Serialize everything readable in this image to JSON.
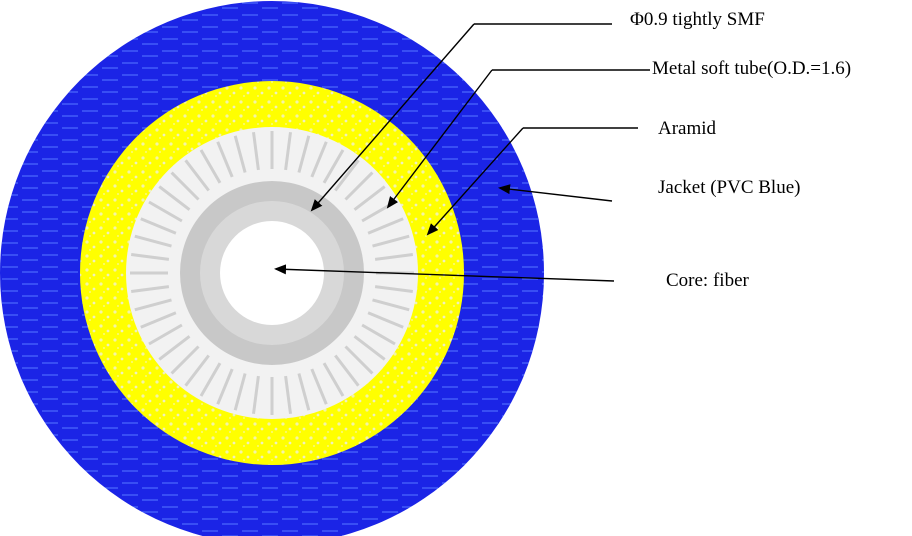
{
  "labels": {
    "smf": "Φ0.9 tightly SMF",
    "tube": "Metal soft tube(O.D.=1.6)",
    "aramid": "Aramid",
    "jacket": "Jacket (PVC Blue)",
    "core": "Core: fiber"
  },
  "colors": {
    "jacket": "#1b24e6",
    "aramid": "#ffff00",
    "tube": "#f2f2f2",
    "smf": "#c8c8c8",
    "core": "#ffffff",
    "lines": "#000000"
  }
}
